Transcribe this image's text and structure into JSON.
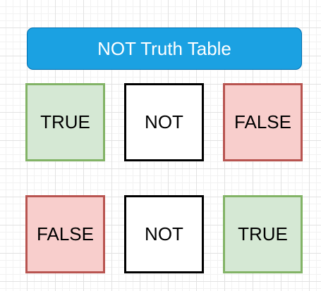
{
  "title": "NOT Truth Table",
  "rows": [
    {
      "input": "TRUE",
      "operator": "NOT",
      "output": "FALSE"
    },
    {
      "input": "FALSE",
      "operator": "NOT",
      "output": "TRUE"
    }
  ],
  "colors": {
    "title_fill": "#1ba1e2",
    "title_border": "#006eaf",
    "true_fill": "#d5e8d4",
    "true_border": "#82b366",
    "false_fill": "#f8cecc",
    "false_border": "#b85450",
    "not_fill": "#ffffff",
    "not_border": "#000000"
  }
}
